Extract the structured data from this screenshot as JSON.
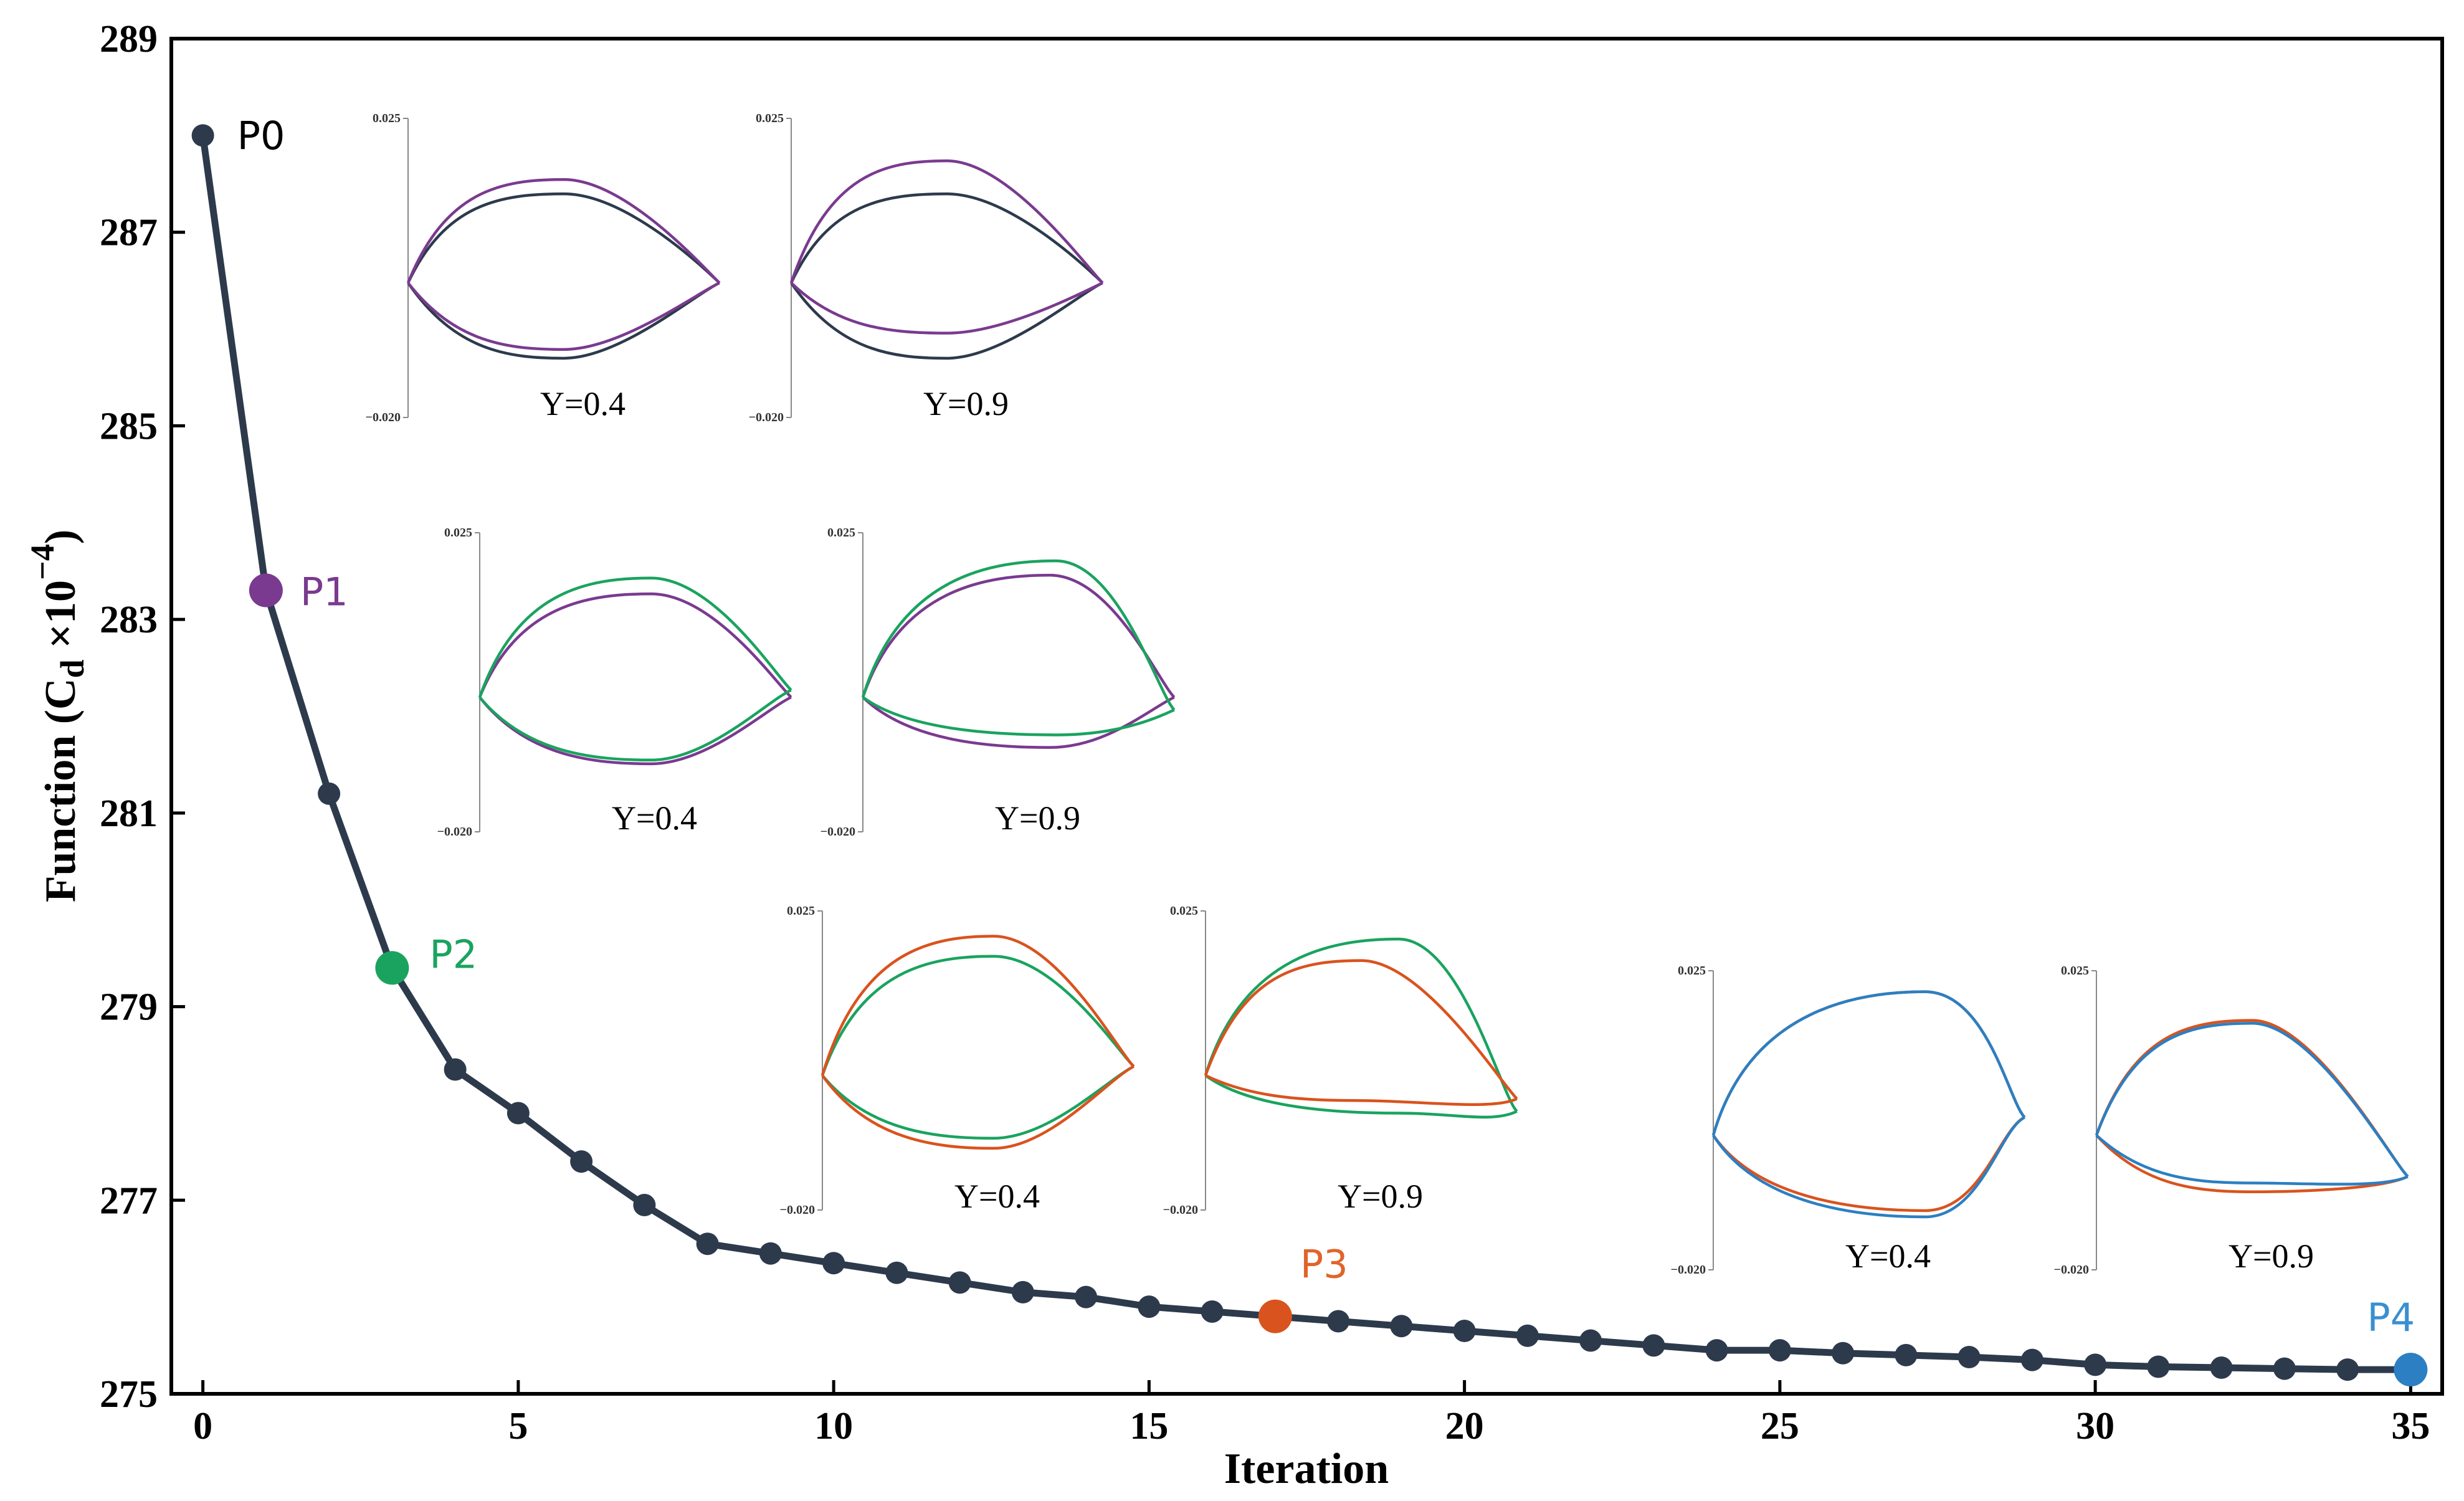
{
  "chart_data": {
    "type": "line",
    "x": [
      0,
      1,
      2,
      3,
      4,
      5,
      6,
      7,
      8,
      9,
      10,
      11,
      12,
      13,
      14,
      15,
      16,
      17,
      18,
      19,
      20,
      21,
      22,
      23,
      24,
      25,
      26,
      27,
      28,
      29,
      30,
      31,
      32,
      33,
      34,
      35
    ],
    "values": [
      288.0,
      283.3,
      281.2,
      279.4,
      278.35,
      277.9,
      277.4,
      276.95,
      276.55,
      276.45,
      276.35,
      276.25,
      276.15,
      276.05,
      276.0,
      275.9,
      275.85,
      275.8,
      275.75,
      275.7,
      275.65,
      275.6,
      275.55,
      275.5,
      275.45,
      275.45,
      275.42,
      275.4,
      275.38,
      275.35,
      275.3,
      275.28,
      275.27,
      275.26,
      275.25,
      275.25
    ],
    "xlabel": "Iteration",
    "ylabel": "Function (Cd ×10⁻⁴)",
    "ylabel_parts": {
      "prefix": "Function (C",
      "sub": "d",
      "mid": " ×10",
      "sup": "−4",
      "suffix": ")"
    },
    "xlim": [
      -0.5,
      35.5
    ],
    "ylim": [
      275,
      289
    ],
    "xticks": [
      0,
      5,
      10,
      15,
      20,
      25,
      30,
      35
    ],
    "yticks": [
      275,
      277,
      279,
      281,
      283,
      285,
      287,
      289
    ],
    "line_color": "#2d3a4c",
    "highlights": [
      {
        "label": "P0",
        "x": 0,
        "color": "#000000",
        "marker_color": "#2d3a4c"
      },
      {
        "label": "P1",
        "x": 1,
        "color": "#7a3a8f",
        "marker_color": "#7a3a8f"
      },
      {
        "label": "P2",
        "x": 3,
        "color": "#1aa35f",
        "marker_color": "#1aa35f"
      },
      {
        "label": "P3",
        "x": 17,
        "color": "#e0642a",
        "marker_color": "#d9531e"
      },
      {
        "label": "P4",
        "x": 35,
        "color": "#3a8fd0",
        "marker_color": "#2c7fc2"
      }
    ],
    "insets": [
      {
        "label": "Y=0.4",
        "ymax": "0.025",
        "ymin": "−0.020",
        "base": "#2d3a4c",
        "comp": "#7a3a8f",
        "base_upper": 0.62,
        "base_lower": 0.6,
        "comp_upper": 0.72,
        "comp_lower": 0.53,
        "skew_base": 0,
        "skew_comp": 0,
        "te_base": 0.45,
        "te_comp": 0.45
      },
      {
        "label": "Y=0.9",
        "ymax": "0.025",
        "ymin": "−0.020",
        "base": "#2d3a4c",
        "comp": "#7a3a8f",
        "base_upper": 0.62,
        "base_lower": 0.6,
        "comp_upper": 0.85,
        "comp_lower": 0.4,
        "skew_base": 0,
        "skew_comp": 0,
        "te_base": 0.45,
        "te_comp": 0.45
      },
      {
        "label": "Y=0.4",
        "ymax": "0.025",
        "ymin": "−0.020",
        "base": "#7a3a8f",
        "comp": "#1aa35f",
        "base_upper": 0.72,
        "base_lower": 0.53,
        "comp_upper": 0.83,
        "comp_lower": 0.5,
        "skew_base": 0.05,
        "skew_comp": 0.05,
        "te_base": 0.45,
        "te_comp": 0.49
      },
      {
        "label": "Y=0.9",
        "ymax": "0.025",
        "ymin": "−0.020",
        "base": "#7a3a8f",
        "comp": "#1aa35f",
        "base_upper": 0.85,
        "base_lower": 0.4,
        "comp_upper": 0.95,
        "comp_lower": 0.3,
        "skew_base": 0.1,
        "skew_comp": 0.12,
        "te_base": 0.45,
        "te_comp": 0.38
      },
      {
        "label": "Y=0.4",
        "ymax": "0.025",
        "ymin": "−0.020",
        "base": "#1aa35f",
        "comp": "#d9531e",
        "base_upper": 0.83,
        "base_lower": 0.5,
        "comp_upper": 0.97,
        "comp_lower": 0.58,
        "skew_base": 0.05,
        "skew_comp": 0.05,
        "te_base": 0.5,
        "te_comp": 0.5
      },
      {
        "label": "Y=0.9",
        "ymax": "0.025",
        "ymin": "−0.020",
        "base": "#1aa35f",
        "comp": "#d9531e",
        "base_upper": 0.95,
        "base_lower": 0.3,
        "comp_upper": 0.8,
        "comp_lower": 0.2,
        "skew_base": 0.12,
        "skew_comp": 0.0,
        "te_base": 0.25,
        "te_comp": 0.32
      },
      {
        "label": "Y=0.4",
        "ymax": "0.025",
        "ymin": "−0.020",
        "base": "#d9531e",
        "comp": "#2c7fc2",
        "base_upper": 1.0,
        "base_lower": 0.6,
        "comp_upper": 1.0,
        "comp_lower": 0.65,
        "skew_base": 0.18,
        "skew_comp": 0.18,
        "te_base": 0.55,
        "te_comp": 0.55
      },
      {
        "label": "Y=0.9",
        "ymax": "0.025",
        "ymin": "−0.020",
        "base": "#d9531e",
        "comp": "#2c7fc2",
        "base_upper": 0.8,
        "base_lower": 0.45,
        "comp_upper": 0.78,
        "comp_lower": 0.38,
        "skew_base": 0.0,
        "skew_comp": 0.0,
        "te_base": 0.22,
        "te_comp": 0.22
      }
    ]
  }
}
